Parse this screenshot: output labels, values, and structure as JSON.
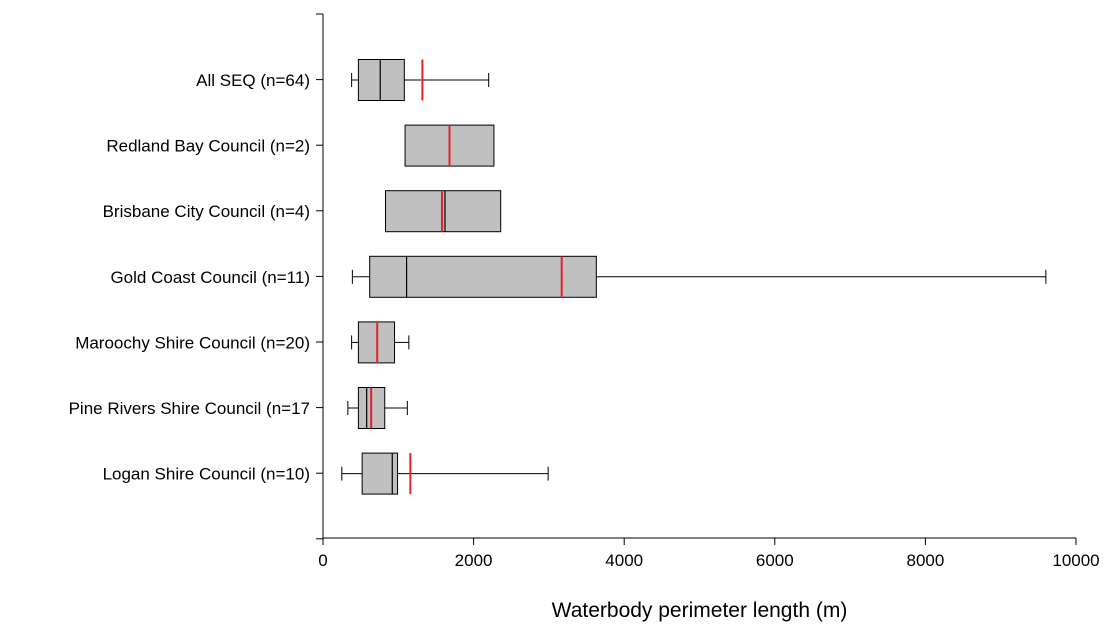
{
  "chart_data": {
    "type": "boxplot",
    "orientation": "horizontal",
    "xlabel": "Waterbody perimeter length (m)",
    "ylabel": "",
    "xlim": [
      0,
      10000
    ],
    "xticks": [
      0,
      2000,
      4000,
      6000,
      8000,
      10000
    ],
    "grid": false,
    "median_color": "#000000",
    "mean_color": "#e8202a",
    "box_fill": "#c0c0c0",
    "categories": [
      {
        "label": "All SEQ (n=64)",
        "whisker_low": 380,
        "q1": 470,
        "median": 760,
        "q3": 1080,
        "whisker_high": 2200,
        "mean": 1320
      },
      {
        "label": "Redland Bay Council (n=2)",
        "whisker_low": null,
        "q1": 1090,
        "median": 1680,
        "q3": 2270,
        "whisker_high": null,
        "mean": 1680
      },
      {
        "label": "Brisbane City Council (n=4)",
        "whisker_low": null,
        "q1": 830,
        "median": 1620,
        "q3": 2360,
        "whisker_high": null,
        "mean": 1580
      },
      {
        "label": "Gold Coast Council (n=11)",
        "whisker_low": 390,
        "q1": 620,
        "median": 1110,
        "q3": 3630,
        "whisker_high": 9600,
        "mean": 3170
      },
      {
        "label": "Maroochy Shire Council (n=20)",
        "whisker_low": 380,
        "q1": 470,
        "median": 720,
        "q3": 950,
        "whisker_high": 1140,
        "mean": 720
      },
      {
        "label": "Pine Rivers Shire Council (n=17",
        "whisker_low": 330,
        "q1": 470,
        "median": 580,
        "q3": 820,
        "whisker_high": 1120,
        "mean": 640
      },
      {
        "label": "Logan Shire Council (n=10)",
        "whisker_low": 250,
        "q1": 520,
        "median": 920,
        "q3": 990,
        "whisker_high": 2990,
        "mean": 1160
      }
    ]
  }
}
